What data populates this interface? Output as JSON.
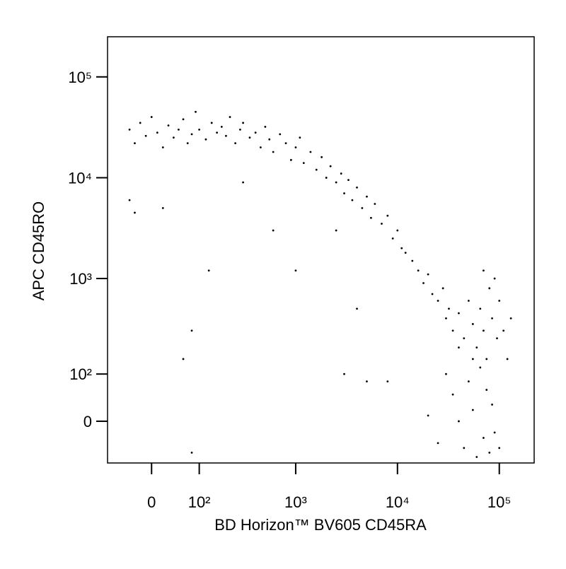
{
  "chart_data": {
    "type": "scatter",
    "x_label": "BD Horizon™ BV605 CD45RA",
    "y_label": "APC CD45RO",
    "xscale": "biexponential",
    "yscale": "biexponential",
    "color": "#000000",
    "xlim": [
      -90,
      220000
    ],
    "ylim": [
      -85,
      250000
    ],
    "xticks": [
      0,
      {
        "value": 100,
        "label": "10²"
      },
      {
        "value": 1000,
        "label": "10³"
      },
      {
        "value": 10000,
        "label": "10⁴"
      },
      {
        "value": 100000,
        "label": "10⁵"
      }
    ],
    "yticks": [
      0,
      {
        "value": 100,
        "label": "10²"
      },
      {
        "value": 1000,
        "label": "10³"
      },
      {
        "value": 10000,
        "label": "10⁴"
      },
      {
        "value": 100000,
        "label": "10⁵"
      }
    ],
    "x": [
      -40,
      -30,
      -20,
      -10,
      0,
      10,
      20,
      30,
      40,
      50,
      60,
      70,
      80,
      90,
      100,
      120,
      140,
      160,
      180,
      200,
      220,
      250,
      280,
      300,
      350,
      400,
      450,
      500,
      550,
      600,
      700,
      800,
      900,
      1000,
      1100,
      1200,
      1400,
      1600,
      1800,
      2000,
      2200,
      2500,
      2800,
      3000,
      3300,
      3600,
      4000,
      4500,
      5000,
      5500,
      6000,
      7000,
      8000,
      9000,
      10000,
      11000,
      12000,
      14000,
      16000,
      18000,
      20000,
      22000,
      25000,
      28000,
      30000,
      32000,
      35000,
      40000,
      45000,
      50000,
      55000,
      60000,
      65000,
      70000,
      75000,
      80000,
      85000,
      90000,
      95000,
      100000,
      110000,
      120000,
      30000,
      35000,
      40000,
      45000,
      50000,
      55000,
      60000,
      65000,
      70000,
      75000,
      80000,
      85000,
      90000,
      25000,
      20000,
      100000,
      40000,
      55000,
      70000,
      130000,
      -40,
      -30,
      20,
      60,
      80,
      130,
      80,
      1000,
      600,
      3000,
      5000,
      4000,
      8000,
      300,
      2500
    ],
    "y": [
      30000,
      22000,
      35000,
      26000,
      40000,
      28000,
      20000,
      33000,
      25000,
      30000,
      38000,
      22000,
      27000,
      45000,
      30000,
      24000,
      35000,
      28000,
      32000,
      26000,
      40000,
      22000,
      30000,
      35000,
      25000,
      28000,
      20000,
      32000,
      24000,
      18000,
      27000,
      22000,
      15000,
      20000,
      25000,
      14000,
      18000,
      12000,
      16000,
      10000,
      13000,
      9000,
      11000,
      7000,
      9500,
      6000,
      8000,
      5000,
      6500,
      4000,
      5500,
      3500,
      4200,
      2500,
      3000,
      2000,
      1800,
      1500,
      1200,
      900,
      1100,
      700,
      600,
      800,
      400,
      500,
      300,
      450,
      250,
      600,
      350,
      200,
      500,
      300,
      150,
      800,
      400,
      1000,
      250,
      600,
      300,
      150,
      100,
      50,
      0,
      -50,
      80,
      20,
      -70,
      120,
      -30,
      60,
      -60,
      30,
      -20,
      -40,
      10,
      -50,
      200,
      150,
      1200,
      400,
      6000,
      4500,
      5000,
      150,
      -60,
      1200,
      300,
      1200,
      3000,
      100,
      80,
      500,
      80,
      9000,
      3000
    ]
  }
}
